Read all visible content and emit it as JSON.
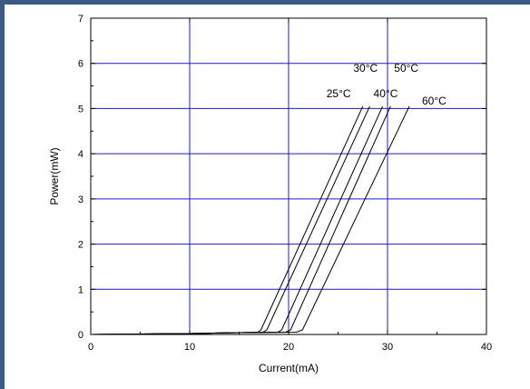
{
  "colors": {
    "top_bar": "#3b5b86",
    "left_bar": "#3b5b86",
    "grid": "#1c1cc8",
    "curve": "#000000",
    "background": "#ffffff"
  },
  "chart_data": {
    "type": "line",
    "title": "",
    "xlabel": "Current(mA)",
    "ylabel": "Power(mW)",
    "xlim": [
      0,
      40
    ],
    "ylim": [
      0,
      7
    ],
    "xticks": [
      0,
      10,
      20,
      30,
      40
    ],
    "yticks": [
      0,
      1,
      2,
      3,
      4,
      5,
      6,
      7
    ],
    "grid": true,
    "series": [
      {
        "name": "25°C",
        "x": [
          0,
          10,
          15,
          16.9,
          17.2,
          27.5
        ],
        "y": [
          0,
          0.02,
          0.04,
          0.05,
          0.1,
          5.05
        ]
      },
      {
        "name": "30°C",
        "x": [
          0,
          10,
          15,
          17.4,
          17.8,
          28.2
        ],
        "y": [
          0,
          0.02,
          0.04,
          0.05,
          0.1,
          5.05
        ]
      },
      {
        "name": "40°C",
        "x": [
          0,
          10,
          15,
          18.9,
          19.3,
          29.5
        ],
        "y": [
          0,
          0.02,
          0.04,
          0.05,
          0.1,
          5.05
        ]
      },
      {
        "name": "50°C",
        "x": [
          0,
          10,
          15,
          19.7,
          20.2,
          30.3
        ],
        "y": [
          0,
          0.02,
          0.04,
          0.05,
          0.1,
          5.05
        ]
      },
      {
        "name": "60°C",
        "x": [
          0,
          10,
          15,
          20.8,
          21.4,
          32.2
        ],
        "y": [
          0,
          0.02,
          0.04,
          0.05,
          0.1,
          5.05
        ]
      }
    ],
    "annotations": [
      {
        "text": "30°C",
        "series": "30°C"
      },
      {
        "text": "50°C",
        "series": "50°C"
      },
      {
        "text": "25°C",
        "series": "25°C"
      },
      {
        "text": "40°C",
        "series": "40°C"
      },
      {
        "text": "60°C",
        "series": "60°C"
      }
    ]
  }
}
